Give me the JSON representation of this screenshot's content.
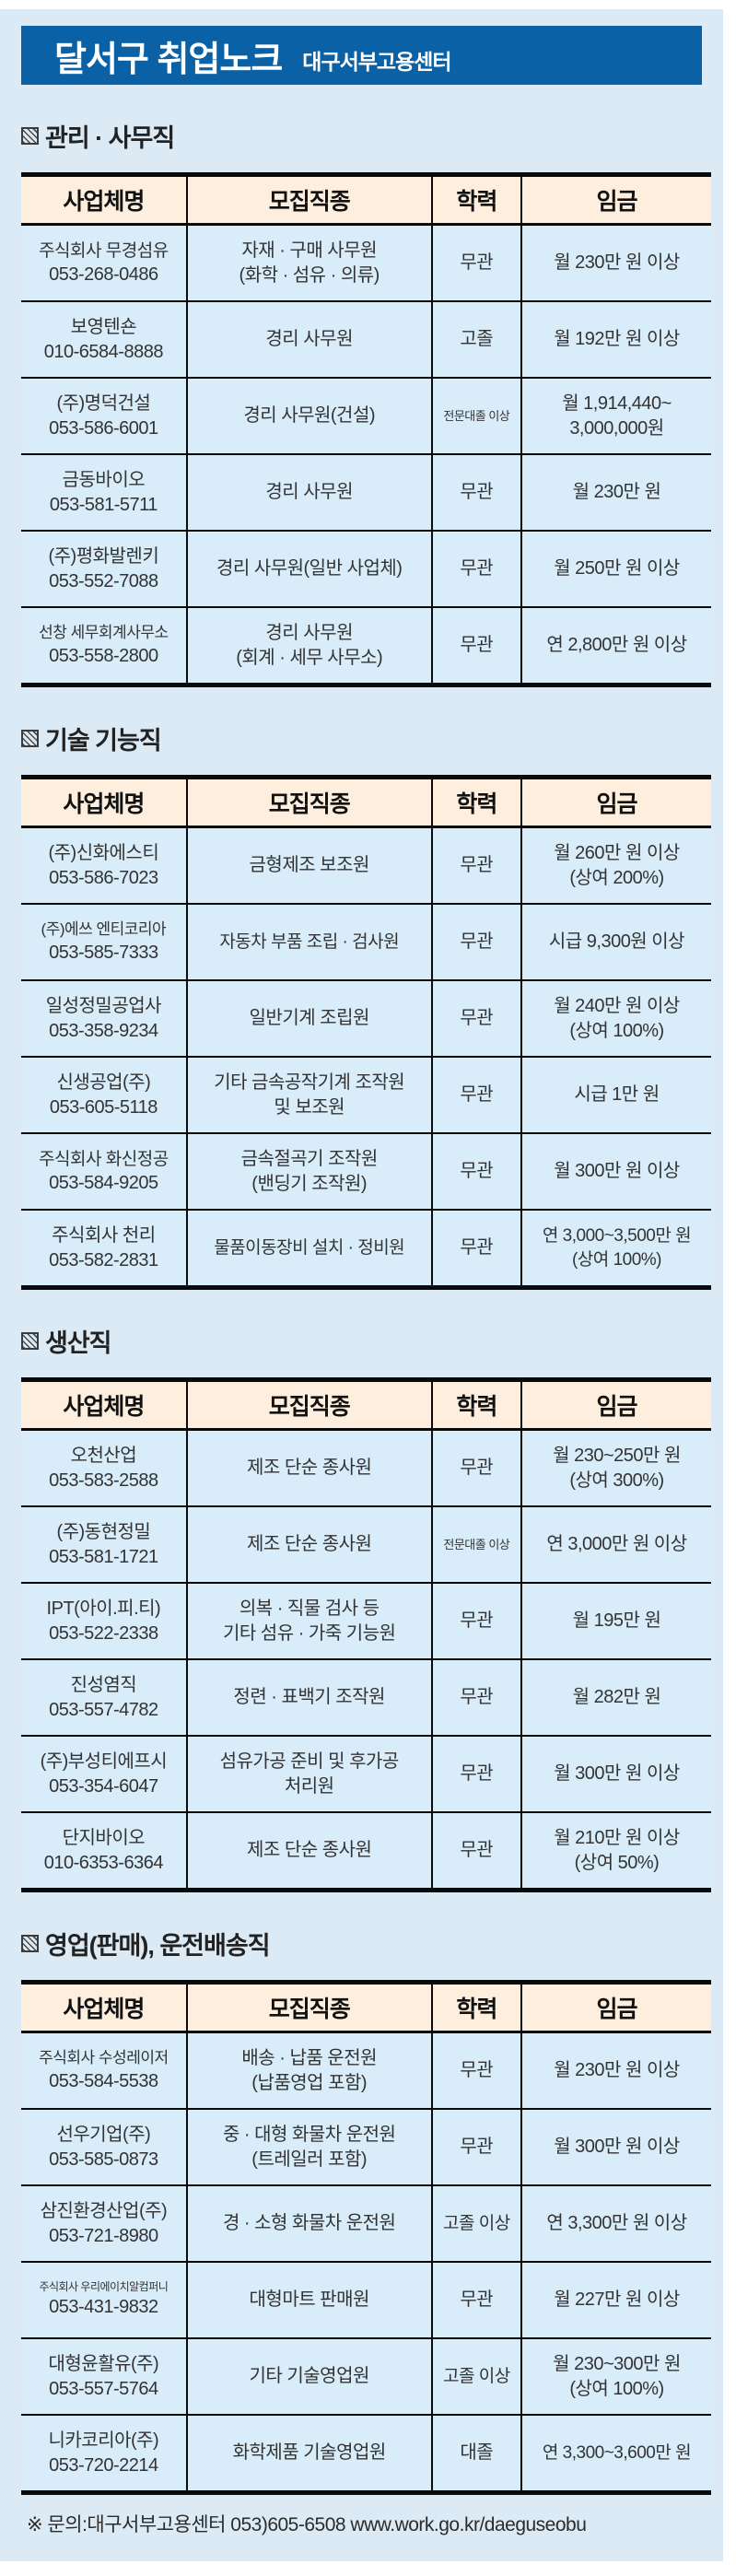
{
  "header": {
    "title": "달서구 취업노크",
    "subtitle": "대구서부고용센터"
  },
  "table": {
    "columns": [
      "사업체명",
      "모집직종",
      "학력",
      "임금"
    ]
  },
  "sections": [
    {
      "title": "관리 · 사무직",
      "rows": [
        {
          "company": "주식회사 무경섬유",
          "phone": "053-268-0486",
          "job": "자재 · 구매 사무원\n(화학 · 섬유 · 의류)",
          "edu": "무관",
          "wage": "월 230만 원 이상"
        },
        {
          "company": "보영텐숀",
          "phone": "010-6584-8888",
          "job": "경리 사무원",
          "edu": "고졸",
          "wage": "월 192만 원 이상"
        },
        {
          "company": "(주)명덕건설",
          "phone": "053-586-6001",
          "job": "경리 사무원(건설)",
          "edu": "전문대졸 이상",
          "wage": "월 1,914,440~\n3,000,000원"
        },
        {
          "company": "금동바이오",
          "phone": "053-581-5711",
          "job": "경리 사무원",
          "edu": "무관",
          "wage": "월 230만 원"
        },
        {
          "company": "(주)평화발렌키",
          "phone": "053-552-7088",
          "job": "경리 사무원(일반 사업체)",
          "edu": "무관",
          "wage": "월 250만 원 이상"
        },
        {
          "company": "선창 세무회계사무소",
          "phone": "053-558-2800",
          "job": "경리 사무원\n(회계 · 세무 사무소)",
          "edu": "무관",
          "wage": "연 2,800만 원 이상"
        }
      ]
    },
    {
      "title": "기술 기능직",
      "rows": [
        {
          "company": "(주)신화에스티",
          "phone": "053-586-7023",
          "job": "금형제조 보조원",
          "edu": "무관",
          "wage": "월 260만 원 이상\n(상여 200%)"
        },
        {
          "company": "(주)에쓰 엔티코리아",
          "phone": "053-585-7333",
          "job": "자동차 부품 조립 · 검사원",
          "edu": "무관",
          "wage": "시급 9,300원 이상"
        },
        {
          "company": "일성정밀공업사",
          "phone": "053-358-9234",
          "job": "일반기계 조립원",
          "edu": "무관",
          "wage": "월 240만 원 이상\n(상여 100%)"
        },
        {
          "company": "신생공업(주)",
          "phone": "053-605-5118",
          "job": "기타 금속공작기계 조작원\n및 보조원",
          "edu": "무관",
          "wage": "시급 1만 원"
        },
        {
          "company": "주식회사 화신정공",
          "phone": "053-584-9205",
          "job": "금속절곡기 조작원\n(밴딩기 조작원)",
          "edu": "무관",
          "wage": "월 300만 원 이상"
        },
        {
          "company": "주식회사 천리",
          "phone": "053-582-2831",
          "job": "물품이동장비 설치 · 정비원",
          "edu": "무관",
          "wage": "연 3,000~3,500만 원\n(상여 100%)"
        }
      ]
    },
    {
      "title": "생산직",
      "rows": [
        {
          "company": "오천산업",
          "phone": "053-583-2588",
          "job": "제조 단순 종사원",
          "edu": "무관",
          "wage": "월 230~250만 원\n(상여 300%)"
        },
        {
          "company": "(주)동현정밀",
          "phone": "053-581-1721",
          "job": "제조 단순 종사원",
          "edu": "전문대졸 이상",
          "wage": "연 3,000만 원 이상"
        },
        {
          "company": "IPT(아이.피.티)",
          "phone": "053-522-2338",
          "job": "의복 · 직물 검사 등\n기타 섬유 · 가죽 기능원",
          "edu": "무관",
          "wage": "월 195만 원"
        },
        {
          "company": "진성염직",
          "phone": "053-557-4782",
          "job": "정련 · 표백기 조작원",
          "edu": "무관",
          "wage": "월 282만 원"
        },
        {
          "company": "(주)부성티에프시",
          "phone": "053-354-6047",
          "job": "섬유가공 준비 및 후가공\n처리원",
          "edu": "무관",
          "wage": "월 300만 원 이상"
        },
        {
          "company": "단지바이오",
          "phone": "010-6353-6364",
          "job": "제조 단순 종사원",
          "edu": "무관",
          "wage": "월 210만 원 이상\n(상여 50%)"
        }
      ]
    },
    {
      "title": "영업(판매), 운전배송직",
      "rows": [
        {
          "company": "주식회사 수성레이저",
          "phone": "053-584-5538",
          "job": "배송 · 납품 운전원\n(납품영업 포함)",
          "edu": "무관",
          "wage": "월 230만 원 이상"
        },
        {
          "company": "선우기업(주)",
          "phone": "053-585-0873",
          "job": "중 · 대형 화물차 운전원\n(트레일러 포함)",
          "edu": "무관",
          "wage": "월 300만 원 이상"
        },
        {
          "company": "삼진환경산업(주)",
          "phone": "053-721-8980",
          "job": "경 · 소형 화물차 운전원",
          "edu": "고졸 이상",
          "wage": "연 3,300만 원 이상"
        },
        {
          "company": "주식회사 우리에이치알컴퍼니",
          "phone": "053-431-9832",
          "job": "대형마트 판매원",
          "edu": "무관",
          "wage": "월 227만 원 이상"
        },
        {
          "company": "대형윤활유(주)",
          "phone": "053-557-5764",
          "job": "기타 기술영업원",
          "edu": "고졸 이상",
          "wage": "월 230~300만 원\n(상여 100%)"
        },
        {
          "company": "니카코리아(주)",
          "phone": "053-720-2214",
          "job": "화학제품 기술영업원",
          "edu": "대졸",
          "wage": "연 3,300~3,600만 원"
        }
      ]
    }
  ],
  "footer": {
    "note": "※ 문의:대구서부고용센터 053)605-6508   www.work.go.kr/daeguseobu"
  },
  "colors": {
    "banner_blue": "#0b61a6",
    "panel_background": "#dbeaf5",
    "cell_background": "#d8ecfa",
    "header_row_cream": "#fdeedd",
    "rule_black": "#0a0a0a"
  }
}
